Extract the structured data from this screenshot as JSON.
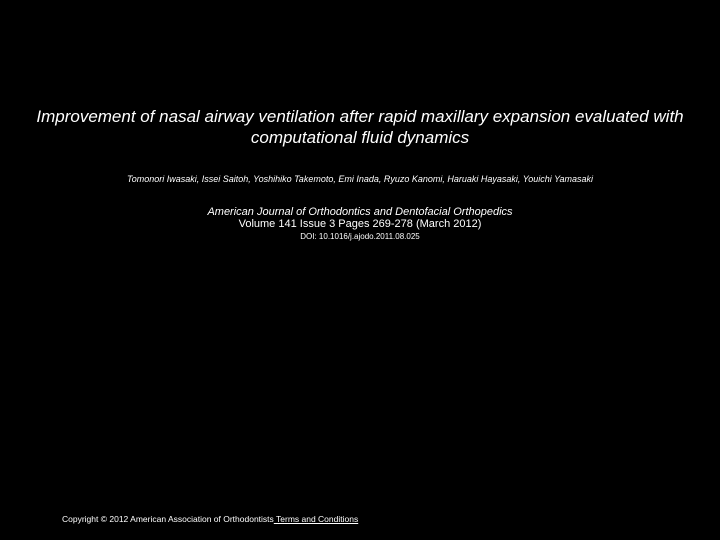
{
  "colors": {
    "background": "#000000",
    "text": "#ffffff"
  },
  "title": "Improvement of nasal airway ventilation after rapid maxillary expansion evaluated with computational fluid dynamics",
  "authors": "Tomonori Iwasaki, Issei Saitoh, Yoshihiko Takemoto, Emi Inada, Ryuzo Kanomi, Haruaki Hayasaki, Youichi Yamasaki",
  "journal": "American Journal of Orthodontics and Dentofacial Orthopedics",
  "volume_line": "Volume 141 Issue 3 Pages 269-278 (March 2012)",
  "doi": "DOI: 10.1016/j.ajodo.2011.08.025",
  "copyright": "Copyright © 2012 American Association of Orthodontists",
  "terms_label": " Terms and Conditions"
}
